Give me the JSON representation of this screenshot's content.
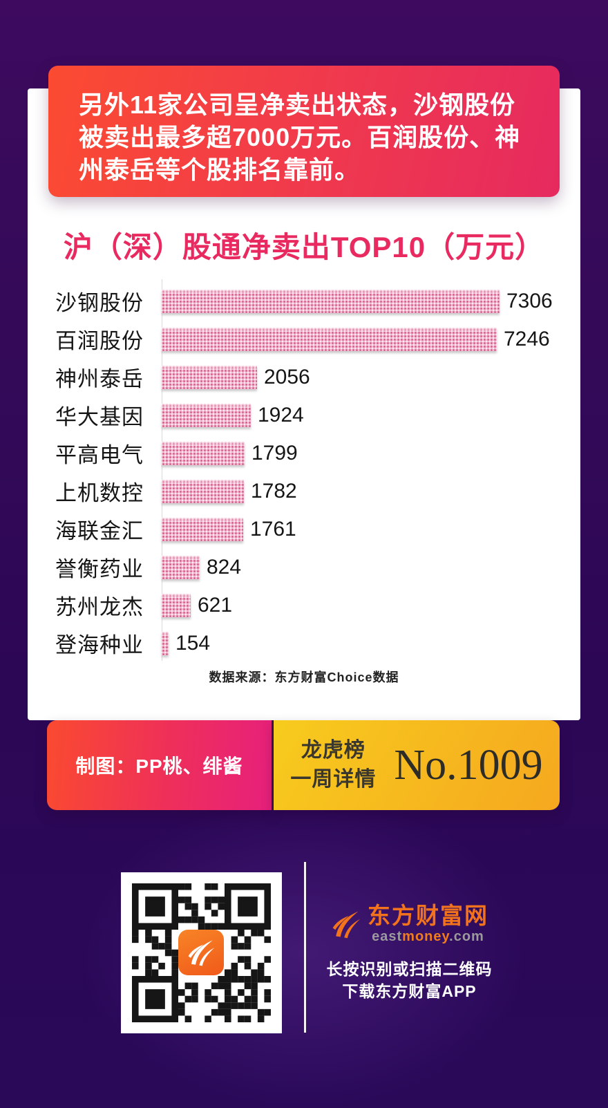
{
  "banner": {
    "lines": [
      "另外11家公司呈净卖出状态，沙钢股份",
      "被卖出最多超7000万元。百润股份、神",
      "州泰岳等个股排名靠前。"
    ]
  },
  "chart_data": {
    "type": "bar",
    "orientation": "horizontal",
    "title": "沪（深）股通净卖出TOP10（万元）",
    "categories": [
      "沙钢股份",
      "百润股份",
      "神州泰岳",
      "华大基因",
      "平高电气",
      "上机数控",
      "海联金汇",
      "誉衡药业",
      "苏州龙杰",
      "登海种业"
    ],
    "values": [
      7306,
      7246,
      2056,
      1924,
      1799,
      1782,
      1761,
      824,
      621,
      154
    ],
    "unit": "万元",
    "xlim": [
      0,
      7500
    ],
    "grid": false,
    "value_labels": "end-of-bar",
    "source": "数据来源：东方财富Choice数据"
  },
  "footer": {
    "credit": "制图：PP桃、绯酱",
    "board_line1": "龙虎榜",
    "board_line2": "一周详情",
    "issue_no": "No.1009"
  },
  "download": {
    "brand": "东方财富网",
    "url_east": "east",
    "url_money": "money",
    "url_com": ".com",
    "tip_line1": "长按识别或扫描二维码",
    "tip_line2": "下载东方财富APP"
  },
  "colors": {
    "title_pink": "#e92a60",
    "banner_gradient_from": "#fb4b31",
    "banner_gradient_to": "#e62a5f",
    "credit_gradient_from": "#fa4a30",
    "credit_gradient_to": "#e7207c",
    "issue_gradient_from": "#f7cb1e",
    "issue_gradient_to": "#f6a81f",
    "bar_base": "#f2b9d0",
    "bar_dot": "#c43a6d",
    "brand_orange": "#f3721c",
    "background_purple": "#340a58"
  }
}
